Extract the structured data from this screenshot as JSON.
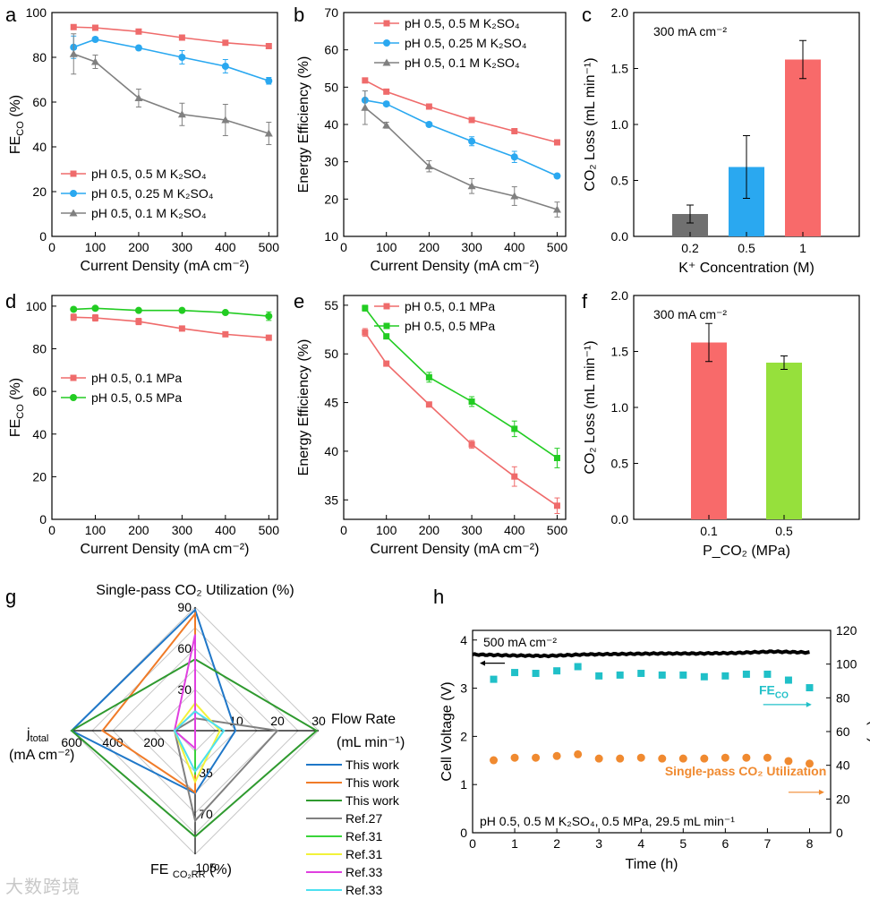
{
  "chart_data": [
    {
      "id": "a",
      "type": "line",
      "panel_label": "a",
      "xlabel": "Current Density (mA cm⁻²)",
      "ylabel": "FE_CO (%)",
      "xlim": [
        0,
        520
      ],
      "ylim": [
        0,
        100
      ],
      "xticks": [
        0,
        100,
        200,
        300,
        400,
        500
      ],
      "yticks": [
        0,
        20,
        40,
        60,
        80,
        100
      ],
      "legend_position": "bottom-left",
      "series": [
        {
          "name": "pH 0.5, 0.5 M K₂SO₄",
          "color": "#ef6b6b",
          "marker": "square",
          "x": [
            50,
            100,
            200,
            300,
            400,
            500
          ],
          "y": [
            93.5,
            93.2,
            91.5,
            88.8,
            86.5,
            85
          ],
          "err": [
            0.5,
            0.5,
            0.8,
            0.8,
            0.8,
            0.8
          ]
        },
        {
          "name": "pH 0.5, 0.25 M K₂SO₄",
          "color": "#2aa8f0",
          "marker": "circle",
          "x": [
            50,
            100,
            200,
            300,
            400,
            500
          ],
          "y": [
            84.5,
            88,
            84.2,
            80,
            76,
            69.5
          ],
          "err": [
            5,
            1,
            1,
            3,
            3,
            1.5
          ]
        },
        {
          "name": "pH 0.5, 0.1 M K₂SO₄",
          "color": "#808080",
          "marker": "triangle",
          "x": [
            50,
            100,
            200,
            300,
            400,
            500
          ],
          "y": [
            81.5,
            78,
            61.8,
            54.5,
            52,
            46
          ],
          "err": [
            9,
            3,
            4,
            5,
            7,
            5
          ]
        }
      ]
    },
    {
      "id": "b",
      "type": "line",
      "panel_label": "b",
      "xlabel": "Current Density (mA cm⁻²)",
      "ylabel": "Energy Efficiency (%)",
      "xlim": [
        0,
        520
      ],
      "ylim": [
        10,
        70
      ],
      "xticks": [
        0,
        100,
        200,
        300,
        400,
        500
      ],
      "yticks": [
        10,
        20,
        30,
        40,
        50,
        60,
        70
      ],
      "legend_position": "top-right",
      "series": [
        {
          "name": "pH 0.5, 0.5 M K₂SO₄",
          "color": "#ef6b6b",
          "marker": "square",
          "x": [
            50,
            100,
            200,
            300,
            400,
            500
          ],
          "y": [
            51.8,
            48.8,
            44.8,
            41.2,
            38.2,
            35.2
          ],
          "err": [
            0.4,
            0.4,
            0.4,
            0.4,
            0.4,
            0.4
          ]
        },
        {
          "name": "pH 0.5, 0.25 M K₂SO₄",
          "color": "#2aa8f0",
          "marker": "circle",
          "x": [
            50,
            100,
            200,
            300,
            400,
            500
          ],
          "y": [
            46.5,
            45.5,
            40,
            35.5,
            31.3,
            26.2
          ],
          "err": [
            2.5,
            0.6,
            0.6,
            1.2,
            1.5,
            0.5
          ]
        },
        {
          "name": "pH 0.5, 0.1 M K₂SO₄",
          "color": "#808080",
          "marker": "triangle",
          "x": [
            50,
            100,
            200,
            300,
            400,
            500
          ],
          "y": [
            44.5,
            39.8,
            28.8,
            23.5,
            20.8,
            17.2
          ],
          "err": [
            4.5,
            0.8,
            1.5,
            2,
            2.5,
            2
          ]
        }
      ]
    },
    {
      "id": "c",
      "type": "bar",
      "panel_label": "c",
      "annotation": "300 mA cm⁻²",
      "xlabel": "K⁺ Concentration (M)",
      "ylabel": "CO₂ Loss (mL min⁻¹)",
      "ylim": [
        0,
        2.0
      ],
      "yticks": [
        0.0,
        0.5,
        1.0,
        1.5,
        2.0
      ],
      "categories": [
        "0.2",
        "0.5",
        "1"
      ],
      "values": [
        0.2,
        0.62,
        1.58
      ],
      "errors": [
        0.08,
        0.28,
        0.17
      ],
      "colors": [
        "#707070",
        "#2aa8f0",
        "#f86a6a"
      ]
    },
    {
      "id": "d",
      "type": "line",
      "panel_label": "d",
      "xlabel": "Current Density (mA cm⁻²)",
      "ylabel": "FE_CO (%)",
      "xlim": [
        0,
        520
      ],
      "ylim": [
        0,
        105
      ],
      "xticks": [
        0,
        100,
        200,
        300,
        400,
        500
      ],
      "yticks": [
        0,
        20,
        40,
        60,
        80,
        100
      ],
      "legend_position": "middle-left",
      "series": [
        {
          "name": "pH 0.5, 0.1 MPa",
          "color": "#ef6b6b",
          "marker": "square",
          "x": [
            50,
            100,
            200,
            300,
            400,
            500
          ],
          "y": [
            94.8,
            94.5,
            92.8,
            89.5,
            86.8,
            85.2
          ],
          "err": [
            1.5,
            1.5,
            1.5,
            1,
            0.8,
            0.6
          ]
        },
        {
          "name": "pH 0.5, 0.5 MPa",
          "color": "#22cc22",
          "marker": "circle",
          "x": [
            50,
            100,
            200,
            300,
            400,
            500
          ],
          "y": [
            98.5,
            99,
            98,
            98,
            97,
            95.3
          ],
          "err": [
            0.6,
            0.6,
            0.6,
            0.6,
            0.8,
            2
          ]
        }
      ]
    },
    {
      "id": "e",
      "type": "line",
      "panel_label": "e",
      "xlabel": "Current Density (mA cm⁻²)",
      "ylabel": "Energy Efficiency (%)",
      "xlim": [
        0,
        520
      ],
      "ylim": [
        33,
        56
      ],
      "xticks": [
        0,
        100,
        200,
        300,
        400,
        500
      ],
      "yticks": [
        35,
        40,
        45,
        50,
        55
      ],
      "legend_position": "top-right",
      "series": [
        {
          "name": "pH 0.5, 0.1 MPa",
          "color": "#ef6b6b",
          "marker": "square",
          "x": [
            50,
            100,
            200,
            300,
            400,
            500
          ],
          "y": [
            52.2,
            49,
            44.8,
            40.7,
            37.4,
            34.4
          ],
          "err": [
            0.4,
            0.2,
            0.2,
            0.4,
            1,
            0.8
          ]
        },
        {
          "name": "pH 0.5, 0.5 MPa",
          "color": "#22cc22",
          "marker": "square",
          "x": [
            50,
            100,
            200,
            300,
            400,
            500
          ],
          "y": [
            54.7,
            51.8,
            47.6,
            45.1,
            42.3,
            39.3
          ],
          "err": [
            0.3,
            0.2,
            0.5,
            0.5,
            0.8,
            1
          ]
        }
      ]
    },
    {
      "id": "f",
      "type": "bar",
      "panel_label": "f",
      "annotation": "300 mA cm⁻²",
      "xlabel": "P_CO₂ (MPa)",
      "ylabel": "CO₂ Loss (mL min⁻¹)",
      "ylim": [
        0,
        2.0
      ],
      "yticks": [
        0.0,
        0.5,
        1.0,
        1.5,
        2.0
      ],
      "categories": [
        "0.1",
        "0.5"
      ],
      "values": [
        1.58,
        1.4
      ],
      "errors": [
        0.17,
        0.06
      ],
      "colors": [
        "#f86a6a",
        "#96e03c"
      ]
    },
    {
      "id": "g",
      "type": "radar",
      "panel_label": "g",
      "axes": [
        {
          "title": "Single-pass CO₂ Utilization (%)",
          "max": 90,
          "ticks": [
            "30",
            "60",
            "90"
          ]
        },
        {
          "title": "Flow Rate",
          "title2": "(mL min⁻¹)",
          "max": 30,
          "ticks": [
            "10",
            "20",
            "30"
          ]
        },
        {
          "title": "FE CO₂RR (%)",
          "min": 35,
          "max": 105,
          "ticks": [
            "35",
            "70",
            "105"
          ]
        },
        {
          "title": "j_total",
          "title2": "(mA cm⁻²)",
          "max": 600,
          "ticks": [
            "200",
            "400",
            "600"
          ]
        }
      ],
      "series": [
        {
          "name": "This work",
          "color": "#1f77c8",
          "values": [
            88,
            9.8,
            70.5,
            600
          ]
        },
        {
          "name": "This work",
          "color": "#f07b28",
          "values": [
            85,
            0,
            70,
            450
          ]
        },
        {
          "name": "This work",
          "color": "#2f9a2f",
          "values": [
            52,
            29.5,
            95,
            600
          ]
        },
        {
          "name": "Ref.27",
          "color": "#808080",
          "values": [
            9,
            20,
            86,
            100
          ]
        },
        {
          "name": "Ref.31",
          "color": "#3ad43a",
          "values": [
            5,
            0,
            60,
            0
          ]
        },
        {
          "name": "Ref.31",
          "color": "#f2f23a",
          "values": [
            20,
            6,
            64,
            100
          ]
        },
        {
          "name": "Ref.33",
          "color": "#e040e0",
          "values": [
            70,
            0,
            45,
            100
          ]
        },
        {
          "name": "Ref.33",
          "color": "#4de0f0",
          "values": [
            14,
            7,
            58,
            100
          ]
        }
      ]
    },
    {
      "id": "h",
      "type": "scatter",
      "panel_label": "h",
      "annotation": "500 mA cm⁻²",
      "condition": "pH 0.5, 0.5 M K₂SO₄, 0.5 MPa, 29.5 mL min⁻¹",
      "xlabel": "Time (h)",
      "ylabel": "Cell Voltage (V)",
      "y2label": "(%)",
      "xlim": [
        0,
        8.5
      ],
      "ylim": [
        0,
        4.2
      ],
      "y2lim": [
        0,
        120
      ],
      "xticks": [
        0,
        1,
        2,
        3,
        4,
        5,
        6,
        7,
        8
      ],
      "yticks": [
        0,
        1,
        2,
        3,
        4
      ],
      "y2ticks": [
        0,
        20,
        40,
        60,
        80,
        100,
        120
      ],
      "voltage": {
        "color": "#000000",
        "x_start": 0,
        "x_end": 8,
        "y": [
          3.7,
          3.68,
          3.67,
          3.7,
          3.71,
          3.72,
          3.72,
          3.73,
          3.76,
          3.74
        ]
      },
      "fe_co": {
        "label": "FE_CO",
        "color": "#20c0c8",
        "x": [
          0.5,
          1,
          1.5,
          2,
          2.5,
          3,
          3.5,
          4,
          4.5,
          5,
          5.5,
          6,
          6.5,
          7,
          7.5,
          8
        ],
        "y": [
          91,
          95,
          94.5,
          96,
          98.5,
          93,
          93.5,
          94.5,
          93.5,
          93.5,
          92.5,
          93,
          94,
          94,
          90.5,
          86
        ]
      },
      "utilization": {
        "label": "Single-pass CO₂ Utilization",
        "color": "#f08a30",
        "x": [
          0.5,
          1,
          1.5,
          2,
          2.5,
          3,
          3.5,
          4,
          4.5,
          5,
          5.5,
          6,
          6.5,
          7,
          7.5,
          8
        ],
        "y": [
          43,
          44.5,
          44.5,
          45.5,
          46.5,
          44,
          44,
          44.5,
          44,
          44,
          44,
          44.5,
          44.5,
          44.5,
          42.5,
          41
        ]
      }
    }
  ],
  "watermark": "大数跨境"
}
